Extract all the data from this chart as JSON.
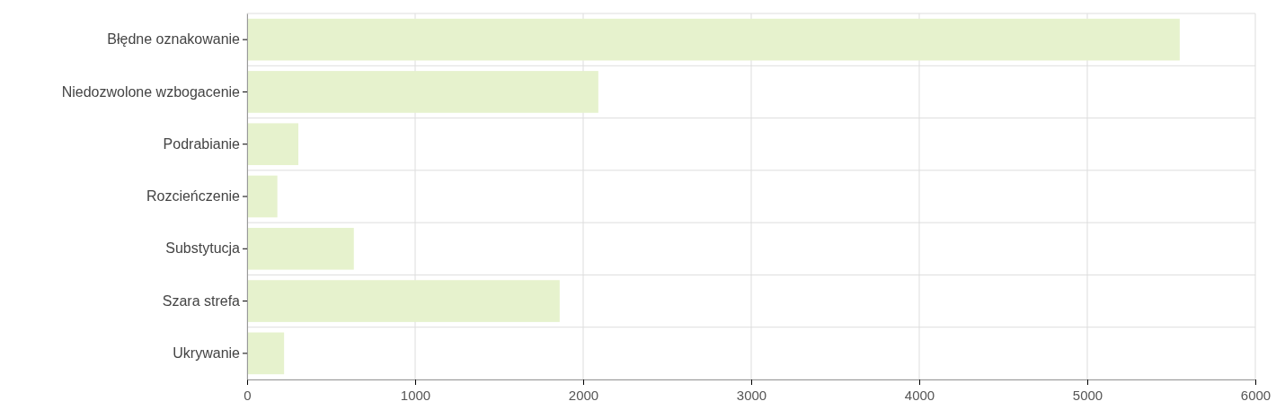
{
  "chart_data": {
    "type": "bar",
    "orientation": "horizontal",
    "categories": [
      "Błędne oznakowanie",
      "Niedozwolone wzbogacenie",
      "Podrabianie",
      "Rozcieńczenie",
      "Substytucja",
      "Szara strefa",
      "Ukrywanie"
    ],
    "values": [
      5550,
      2090,
      305,
      180,
      635,
      1860,
      220
    ],
    "color": "#e6f2cd",
    "xlim": [
      0,
      6000
    ],
    "xticks": [
      0,
      1000,
      2000,
      3000,
      4000,
      5000,
      6000
    ],
    "grid": true
  }
}
